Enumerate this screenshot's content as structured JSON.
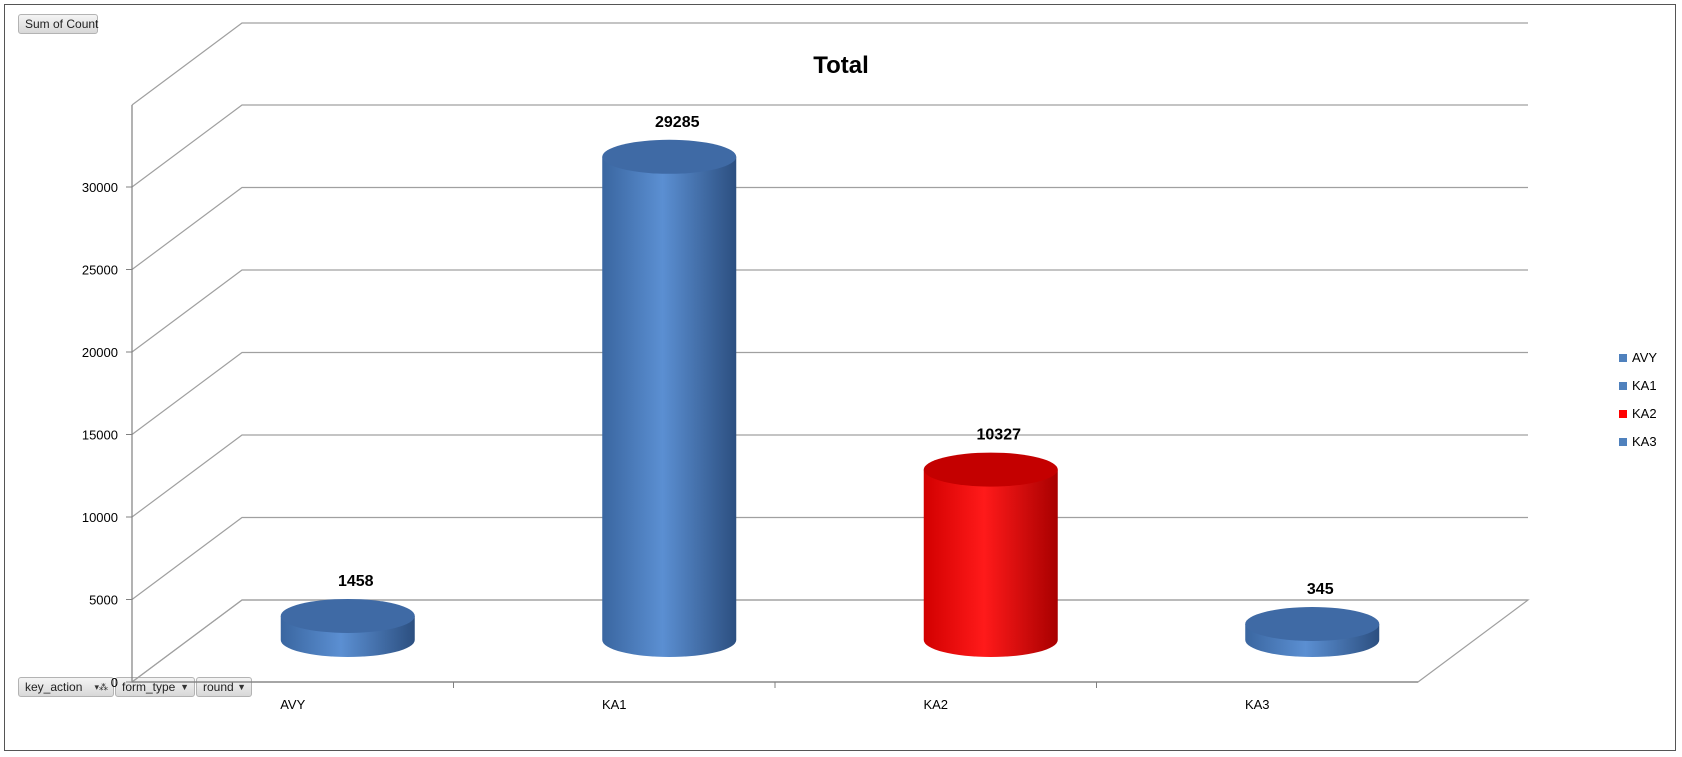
{
  "value_field_button": {
    "label": "Sum of Count"
  },
  "filter_buttons": [
    {
      "label": "key_action",
      "filtered": true
    },
    {
      "label": "form_type",
      "filtered": false
    },
    {
      "label": "round",
      "filtered": false
    }
  ],
  "icons": {
    "dropdown": "chevron-down-icon",
    "filter": "filter-icon"
  },
  "chart_data": {
    "type": "bar",
    "style": "3d-cylinder",
    "title": "Total",
    "xlabel": "",
    "ylabel": "",
    "categories": [
      "AVY",
      "KA1",
      "KA2",
      "KA3"
    ],
    "values": [
      1458,
      29285,
      10327,
      345
    ],
    "data_labels": [
      "1458",
      "29285",
      "10327",
      "345"
    ],
    "colors": [
      "#4F81BD",
      "#4F81BD",
      "#FF0000",
      "#4F81BD"
    ],
    "ylim": [
      0,
      30000
    ],
    "yticks": [
      "0",
      "5000",
      "10000",
      "15000",
      "20000",
      "25000",
      "30000"
    ],
    "grid": true,
    "legend": {
      "placement": "right",
      "entries": [
        {
          "label": "AVY",
          "color": "#4F81BD"
        },
        {
          "label": "KA1",
          "color": "#4F81BD"
        },
        {
          "label": "KA2",
          "color": "#FF0000"
        },
        {
          "label": "KA3",
          "color": "#4F81BD"
        }
      ]
    }
  }
}
